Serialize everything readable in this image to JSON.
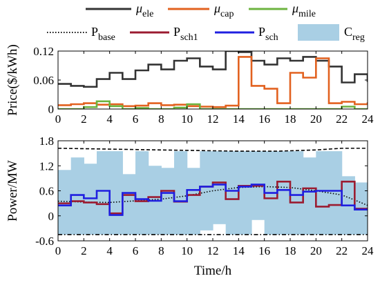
{
  "chart_data": [
    {
      "type": "line",
      "ylabel": "Price($/kWh)",
      "xlim": [
        0,
        24
      ],
      "ylim": [
        0,
        0.12
      ],
      "xticks": [
        "0",
        "2",
        "4",
        "6",
        "8",
        "10",
        "12",
        "14",
        "16",
        "18",
        "20",
        "22",
        "24"
      ],
      "yticks": [
        "0",
        "0.06",
        "0.12"
      ],
      "step": true,
      "legend": {
        "placement": "top",
        "entries": [
          {
            "key": "mu_ele",
            "label": "μ",
            "sub": "ele",
            "color": "#333333",
            "style": "solid"
          },
          {
            "key": "mu_cap",
            "label": "μ",
            "sub": "cap",
            "color": "#e2611f",
            "style": "solid"
          },
          {
            "key": "mu_mile",
            "label": "μ",
            "sub": "mile",
            "color": "#6cb33f",
            "style": "solid"
          }
        ]
      },
      "series": [
        {
          "key": "mu_ele",
          "color": "#333333",
          "values": [
            0.052,
            0.048,
            0.046,
            0.062,
            0.075,
            0.062,
            0.08,
            0.092,
            0.082,
            0.1,
            0.105,
            0.088,
            0.082,
            0.12,
            0.118,
            0.1,
            0.092,
            0.105,
            0.1,
            0.108,
            0.1,
            0.088,
            0.055,
            0.072,
            0.058
          ]
        },
        {
          "key": "mu_cap",
          "color": "#e2611f",
          "values": [
            0.008,
            0.01,
            0.012,
            0.009,
            0.01,
            0.006,
            0.007,
            0.012,
            0.008,
            0.009,
            0.006,
            0.005,
            0.004,
            0.007,
            0.108,
            0.048,
            0.042,
            0.012,
            0.075,
            0.065,
            0.105,
            0.012,
            0.015,
            0.01,
            0.012
          ]
        },
        {
          "key": "mu_mile",
          "color": "#6cb33f",
          "values": [
            0.0,
            0.0,
            0.004,
            0.016,
            0.006,
            0.0,
            0.002,
            0.0,
            0.0,
            0.003,
            0.01,
            0.0,
            0.0,
            0.0,
            0.0,
            0.0,
            0.0,
            0.0,
            0.0,
            0.0,
            0.0,
            0.0,
            0.005,
            0.0,
            0.0
          ]
        }
      ]
    },
    {
      "type": "area",
      "xlabel": "Time/h",
      "ylabel": "Power/MW",
      "xlim": [
        0,
        24
      ],
      "ylim": [
        -0.6,
        1.8
      ],
      "xticks": [
        "0",
        "2",
        "4",
        "6",
        "8",
        "10",
        "12",
        "14",
        "16",
        "18",
        "20",
        "22",
        "24"
      ],
      "yticks": [
        "-0.6",
        "0",
        "0.6",
        "1.2",
        "1.8"
      ],
      "legend": {
        "placement": "top",
        "entries": [
          {
            "key": "p_base",
            "label": "P",
            "sub": "base",
            "color": "#000000",
            "style": "dotted"
          },
          {
            "key": "p_sch1",
            "label": "P",
            "sub": "sch1",
            "color": "#9b1b30",
            "style": "solid"
          },
          {
            "key": "p_sch",
            "label": "P",
            "sub": "sch",
            "color": "#1f1fe0",
            "style": "solid"
          },
          {
            "key": "c_reg",
            "label": "C",
            "sub": "reg",
            "color": "#a9cfe4",
            "style": "patch"
          }
        ]
      },
      "c_reg": {
        "color": "#a9cfe4",
        "upper": [
          1.1,
          1.4,
          1.25,
          1.55,
          1.55,
          1.0,
          1.55,
          1.2,
          1.15,
          1.55,
          1.15,
          1.55,
          1.55,
          1.55,
          1.55,
          1.55,
          1.55,
          1.55,
          1.55,
          1.4,
          1.55,
          1.55,
          0.95,
          0.8
        ],
        "lower": [
          -0.45,
          -0.45,
          -0.45,
          -0.45,
          -0.45,
          -0.45,
          -0.45,
          -0.45,
          -0.45,
          -0.45,
          -0.45,
          -0.35,
          -0.2,
          -0.45,
          -0.45,
          -0.1,
          -0.45,
          -0.45,
          -0.45,
          -0.45,
          -0.45,
          -0.45,
          -0.45,
          -0.45
        ]
      },
      "series": [
        {
          "key": "upper_bound",
          "color": "#000000",
          "style": "dashed",
          "x": [
            0,
            14,
            17,
            20,
            22,
            24
          ],
          "y": [
            1.62,
            1.55,
            1.55,
            1.58,
            1.62,
            1.62
          ]
        },
        {
          "key": "lower_bound",
          "color": "#000000",
          "style": "dashdot",
          "x": [
            0,
            24
          ],
          "y": [
            -0.45,
            -0.45
          ]
        },
        {
          "key": "p_base",
          "color": "#000000",
          "style": "dotted",
          "x": [
            0,
            2,
            4,
            6,
            8,
            10,
            12,
            14,
            16,
            18,
            20,
            22,
            23,
            24
          ],
          "y": [
            0.35,
            0.33,
            0.32,
            0.36,
            0.4,
            0.48,
            0.6,
            0.68,
            0.7,
            0.68,
            0.6,
            0.5,
            0.38,
            0.25
          ]
        },
        {
          "key": "p_sch1",
          "color": "#9b1b30",
          "style": "solid",
          "step": true,
          "values": [
            0.3,
            0.35,
            0.32,
            0.28,
            0.06,
            0.5,
            0.35,
            0.45,
            0.6,
            0.34,
            0.5,
            0.7,
            0.8,
            0.4,
            0.72,
            0.72,
            0.42,
            0.82,
            0.32,
            0.66,
            0.22,
            0.26,
            0.82,
            0.17
          ]
        },
        {
          "key": "p_sch",
          "color": "#1f1fe0",
          "style": "solid",
          "step": true,
          "values": [
            0.25,
            0.5,
            0.42,
            0.6,
            0.02,
            0.55,
            0.4,
            0.36,
            0.55,
            0.35,
            0.62,
            0.7,
            0.75,
            0.6,
            0.7,
            0.75,
            0.55,
            0.62,
            0.5,
            0.58,
            0.6,
            0.6,
            0.25,
            0.15
          ]
        }
      ]
    }
  ]
}
